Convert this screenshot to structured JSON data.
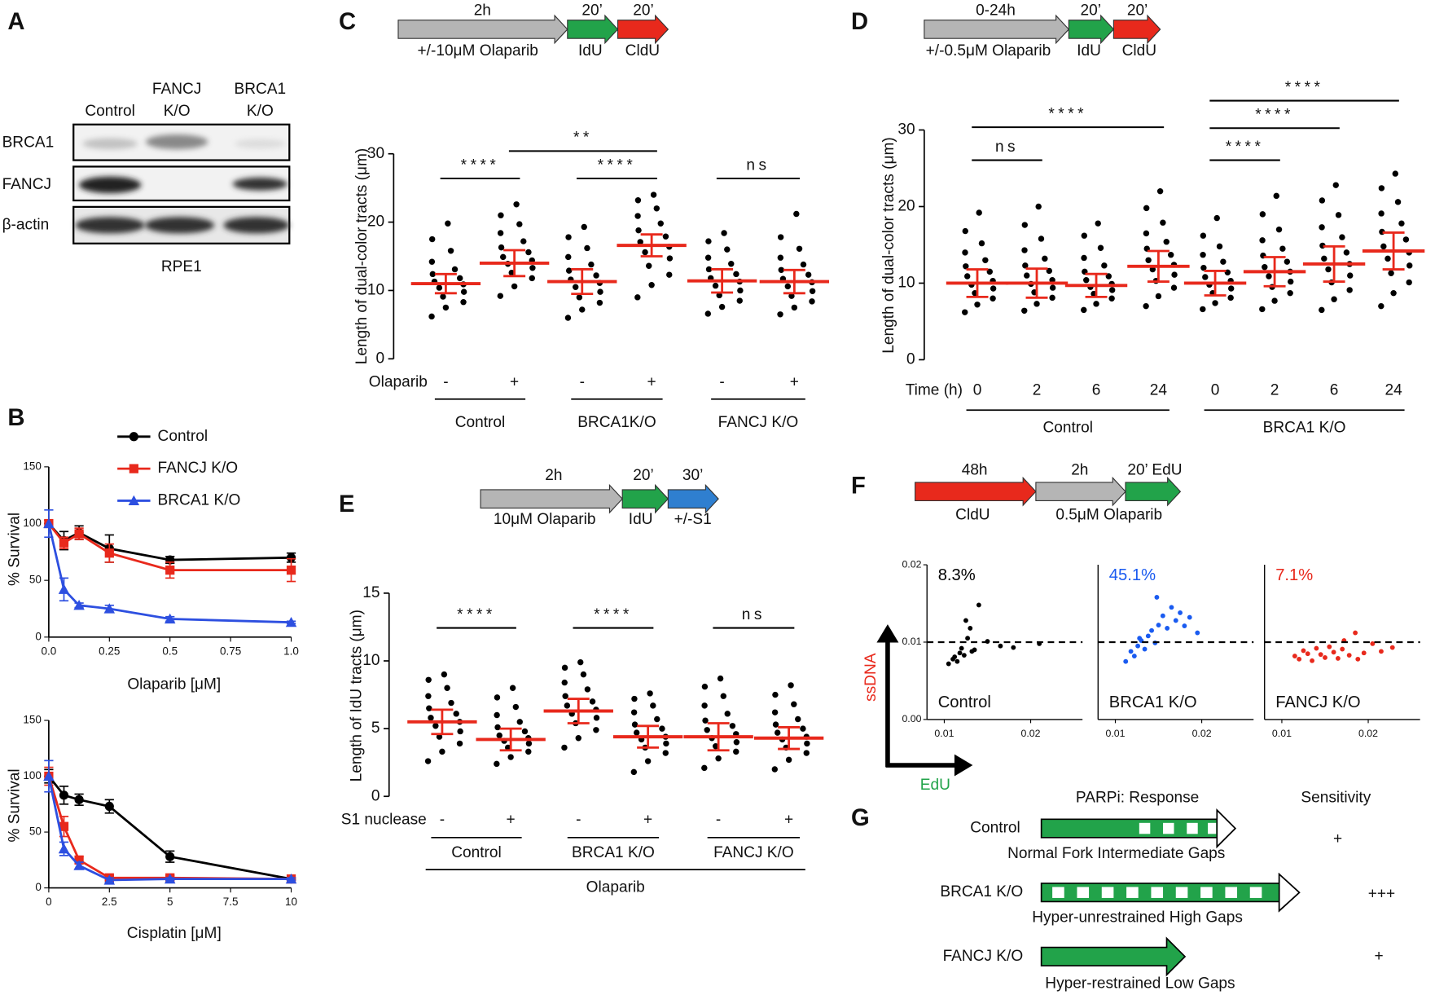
{
  "figure": {
    "panel_labels": [
      "A",
      "B",
      "C",
      "D",
      "E",
      "F",
      "G"
    ]
  },
  "panel_a": {
    "columns": [
      [
        "Control"
      ],
      [
        "FANCJ",
        "K/O"
      ],
      [
        "BRCA1",
        "K/O"
      ]
    ],
    "rows": [
      "BRCA1",
      "FANCJ",
      "β-actin"
    ],
    "cell_line": "RPE1"
  },
  "panel_c_scheme": {
    "durations": [
      "2h",
      "20’",
      "20’"
    ],
    "labels": [
      "+/-10μM Olaparib",
      "IdU",
      "CldU"
    ]
  },
  "panel_d_scheme": {
    "durations": [
      "0-24h",
      "20’",
      "20’"
    ],
    "labels": [
      "+/-0.5μM Olaparib",
      "IdU",
      "CldU"
    ]
  },
  "panel_e_scheme": {
    "durations": [
      "2h",
      "20’",
      "30’"
    ],
    "labels": [
      "10μM Olaparib",
      "IdU",
      "+/-S1"
    ]
  },
  "panel_f_scheme": {
    "durations": [
      "48h",
      "2h",
      "20’ EdU"
    ],
    "labels": [
      "CldU",
      "0.5μM Olaparib"
    ]
  },
  "panel_f_axes": {
    "y_label": "ssDNA",
    "x_label": "EdU"
  },
  "panel_g": {
    "headers": [
      "PARPi: Response",
      "Sensitivity"
    ],
    "rows": [
      {
        "name": "Control",
        "description": "Normal Fork Intermediate Gaps",
        "sensitivity": "+"
      },
      {
        "name": "BRCA1 K/O",
        "description": "Hyper-unrestrained High Gaps",
        "sensitivity": "+++"
      },
      {
        "name": "FANCJ K/O",
        "description": "Hyper-restrained Low Gaps",
        "sensitivity": "+"
      }
    ]
  },
  "chart_data": [
    {
      "type": "line",
      "y_label": "% Survival",
      "x_label": "Olaparib [μM]",
      "x": [
        0,
        0.0625,
        0.125,
        0.25,
        0.5,
        1
      ],
      "xlim": [
        0,
        1
      ],
      "xticks": [
        {
          "value": 0,
          "label": "0.0"
        },
        0.25,
        0.5,
        0.75,
        {
          "value": 1,
          "label": "1.0"
        }
      ],
      "ylim": [
        0,
        150
      ],
      "yticks": [
        0,
        50,
        100,
        150
      ],
      "legend": "top-right",
      "series": [
        {
          "name": "Control",
          "color": "#000000",
          "marker": "circle",
          "values": [
            100,
            85,
            92,
            78,
            68,
            70
          ],
          "errors": [
            3,
            8,
            6,
            12,
            3,
            4
          ]
        },
        {
          "name": "FANCJ K/O",
          "color": "#e8291c",
          "marker": "square",
          "values": [
            100,
            83,
            91,
            74,
            59,
            59
          ],
          "errors": [
            3,
            5,
            5,
            8,
            7,
            10
          ]
        },
        {
          "name": "BRCA1 K/O",
          "color": "#2d4fe0",
          "marker": "triangle",
          "values": [
            100,
            42,
            28,
            25,
            16,
            13
          ],
          "errors": [
            12,
            10,
            2,
            3,
            2,
            1
          ]
        }
      ]
    },
    {
      "type": "line",
      "y_label": "% Survival",
      "x_label": "Cisplatin [μM]",
      "x": [
        0,
        0.625,
        1.25,
        2.5,
        5,
        10
      ],
      "xlim": [
        0,
        10
      ],
      "xticks": [
        0,
        2.5,
        5,
        7.5,
        10
      ],
      "ylim": [
        0,
        150
      ],
      "yticks": [
        0,
        50,
        100,
        150
      ],
      "series": [
        {
          "color": "#000000",
          "marker": "circle",
          "values": [
            100,
            83,
            79,
            73,
            28,
            8
          ],
          "errors": [
            6,
            8,
            5,
            6,
            5,
            1
          ]
        },
        {
          "color": "#e8291c",
          "marker": "square",
          "values": [
            100,
            55,
            25,
            9,
            9,
            8
          ],
          "errors": [
            8,
            9,
            3,
            2,
            2,
            1
          ]
        },
        {
          "color": "#2d4fe0",
          "marker": "triangle",
          "values": [
            100,
            35,
            20,
            7,
            8,
            8
          ],
          "errors": [
            14,
            6,
            3,
            2,
            1,
            1
          ]
        }
      ]
    },
    {
      "type": "dotplot",
      "y_label": "Length of dual-color tracts (μm)",
      "ylim": [
        0,
        30
      ],
      "yticks": [
        0,
        10,
        20,
        30
      ],
      "row_label": "Olaparib",
      "conditions": [
        "-",
        "+",
        "-",
        "+",
        "-",
        "+"
      ],
      "groups": [
        "Control",
        "BRCA1K/O",
        "FANCJ K/O"
      ],
      "annotations": [
        "****",
        "**",
        "****",
        "ns"
      ],
      "dot_color": "#000000",
      "error_color": "#e8291c",
      "columns": [
        {
          "mean": 11,
          "sd": 1.4,
          "values": [
            6.2,
            7.5,
            8.3,
            9.1,
            9.8,
            10.4,
            10.9,
            11.3,
            11.8,
            12.4,
            13.1,
            14.2,
            15.8,
            17.5,
            19.8
          ]
        },
        {
          "mean": 14,
          "sd": 1.9,
          "values": [
            9.2,
            10.6,
            11.8,
            12.6,
            13.3,
            13.9,
            14.4,
            14.9,
            15.6,
            16.3,
            17.2,
            18.4,
            19.7,
            21.0,
            22.6
          ]
        },
        {
          "mean": 11.3,
          "sd": 1.8,
          "values": [
            6.0,
            7.2,
            8.2,
            9.0,
            9.8,
            10.5,
            11.1,
            11.6,
            12.2,
            12.9,
            13.8,
            14.9,
            16.2,
            17.8,
            19.3
          ]
        },
        {
          "mean": 16.6,
          "sd": 1.6,
          "values": [
            9.0,
            10.8,
            12.3,
            13.6,
            14.7,
            15.6,
            16.4,
            17.1,
            17.9,
            18.8,
            19.8,
            20.9,
            22.0,
            23.2,
            24.0
          ]
        },
        {
          "mean": 11.4,
          "sd": 1.7,
          "values": [
            6.6,
            7.6,
            8.5,
            9.3,
            10.0,
            10.7,
            11.3,
            11.8,
            12.4,
            13.1,
            13.9,
            14.8,
            16.0,
            17.2,
            18.4
          ]
        },
        {
          "mean": 11.3,
          "sd": 1.7,
          "values": [
            6.5,
            7.5,
            8.4,
            9.2,
            9.9,
            10.6,
            11.2,
            11.7,
            12.3,
            13.0,
            13.8,
            14.8,
            16.1,
            17.8,
            21.2
          ]
        }
      ]
    },
    {
      "type": "dotplot",
      "y_label": "Length of dual-color tracts (μm)",
      "ylim": [
        0,
        30
      ],
      "yticks": [
        0,
        10,
        20,
        30
      ],
      "row_label": "Time (h)",
      "conditions": [
        "0",
        "2",
        "6",
        "24",
        "0",
        "2",
        "6",
        "24"
      ],
      "groups": [
        "Control",
        "BRCA1 K/O"
      ],
      "annotations": [
        "****",
        "ns",
        "****",
        "****",
        "****"
      ],
      "dot_color": "#000000",
      "error_color": "#e8291c",
      "columns": [
        {
          "mean": 10,
          "sd": 1.8,
          "values": [
            6.2,
            7.2,
            8.0,
            8.7,
            9.3,
            9.8,
            10.3,
            10.9,
            11.5,
            12.2,
            13.0,
            14.0,
            15.2,
            16.8,
            19.2
          ]
        },
        {
          "mean": 10,
          "sd": 1.9,
          "values": [
            6.4,
            7.3,
            8.1,
            8.8,
            9.4,
            9.9,
            10.4,
            11.0,
            11.6,
            12.3,
            13.2,
            14.3,
            15.8,
            17.6,
            20.0
          ]
        },
        {
          "mean": 9.7,
          "sd": 1.5,
          "values": [
            6.5,
            7.3,
            8.0,
            8.6,
            9.1,
            9.5,
            9.9,
            10.4,
            10.9,
            11.5,
            12.3,
            13.3,
            14.6,
            16.2,
            17.8
          ]
        },
        {
          "mean": 12.2,
          "sd": 2.0,
          "values": [
            7.0,
            8.3,
            9.4,
            10.3,
            11.1,
            11.8,
            12.4,
            13.0,
            13.7,
            14.5,
            15.4,
            16.5,
            17.9,
            19.8,
            22.0
          ]
        },
        {
          "mean": 10,
          "sd": 1.6,
          "values": [
            6.6,
            7.4,
            8.1,
            8.7,
            9.3,
            9.8,
            10.3,
            10.8,
            11.4,
            12.0,
            12.8,
            13.7,
            14.8,
            16.2,
            18.5
          ]
        },
        {
          "mean": 11.5,
          "sd": 1.9,
          "values": [
            6.6,
            7.7,
            8.7,
            9.5,
            10.2,
            10.9,
            11.5,
            12.1,
            12.8,
            13.6,
            14.5,
            15.6,
            17.0,
            19.0,
            21.4
          ]
        },
        {
          "mean": 12.5,
          "sd": 2.3,
          "values": [
            6.5,
            7.9,
            9.1,
            10.1,
            11.0,
            11.8,
            12.5,
            13.2,
            14.0,
            14.9,
            16.0,
            17.3,
            18.9,
            20.8,
            22.8
          ]
        },
        {
          "mean": 14.2,
          "sd": 2.4,
          "values": [
            7.0,
            8.7,
            10.1,
            11.3,
            12.3,
            13.2,
            14.0,
            14.8,
            15.7,
            16.7,
            17.8,
            19.1,
            20.6,
            22.4,
            24.3
          ]
        }
      ]
    },
    {
      "type": "dotplot",
      "y_label": "Length of IdU tracts (μm)",
      "ylim": [
        0,
        15
      ],
      "yticks": [
        0,
        5,
        10,
        15
      ],
      "row_label": "S1 nuclease",
      "conditions": [
        "-",
        "+",
        "-",
        "+",
        "-",
        "+"
      ],
      "groups": [
        "Control",
        "BRCA1 K/O",
        "FANCJ K/O"
      ],
      "footer": "Olaparib",
      "annotations": [
        "****",
        "****",
        "ns"
      ],
      "dot_color": "#000000",
      "error_color": "#e8291c",
      "columns": [
        {
          "mean": 5.5,
          "sd": 0.9,
          "values": [
            2.6,
            3.3,
            3.9,
            4.4,
            4.8,
            5.2,
            5.5,
            5.8,
            6.1,
            6.5,
            6.9,
            7.4,
            8.0,
            8.6,
            9.0
          ]
        },
        {
          "mean": 4.2,
          "sd": 0.8,
          "values": [
            2.4,
            2.9,
            3.3,
            3.6,
            3.9,
            4.1,
            4.3,
            4.5,
            4.8,
            5.1,
            5.5,
            6.0,
            6.6,
            7.3,
            8.0
          ]
        },
        {
          "mean": 6.3,
          "sd": 0.9,
          "values": [
            3.6,
            4.3,
            4.9,
            5.4,
            5.8,
            6.1,
            6.4,
            6.7,
            7.0,
            7.4,
            7.9,
            8.4,
            9.0,
            9.5,
            9.9
          ]
        },
        {
          "mean": 4.4,
          "sd": 0.8,
          "values": [
            1.8,
            2.6,
            3.2,
            3.6,
            3.9,
            4.2,
            4.4,
            4.7,
            5.0,
            5.3,
            5.7,
            6.2,
            6.7,
            7.2,
            7.6
          ]
        },
        {
          "mean": 4.4,
          "sd": 1.0,
          "values": [
            2.1,
            2.8,
            3.3,
            3.7,
            4.0,
            4.3,
            4.6,
            4.9,
            5.2,
            5.6,
            6.1,
            6.7,
            7.4,
            8.1,
            8.7
          ]
        },
        {
          "mean": 4.3,
          "sd": 0.8,
          "values": [
            2.0,
            2.7,
            3.2,
            3.6,
            3.9,
            4.2,
            4.4,
            4.7,
            5.0,
            5.3,
            5.7,
            6.2,
            6.8,
            7.5,
            8.2
          ]
        }
      ]
    },
    {
      "type": "scatter",
      "label": "Control",
      "annotation": "8.3%",
      "color": "#000000",
      "xlim": [
        0.008,
        0.026
      ],
      "xticks": [
        0.01,
        0.02
      ],
      "ylim": [
        0,
        0.02
      ],
      "yticks": [
        {
          "value": 0,
          "label": "0.00"
        },
        0.01,
        0.02
      ],
      "reference_line": 0.01,
      "x": [
        0.0105,
        0.011,
        0.0112,
        0.0115,
        0.0118,
        0.012,
        0.0123,
        0.0127,
        0.013,
        0.0135,
        0.014,
        0.015,
        0.0165,
        0.018,
        0.021,
        0.0125,
        0.0132
      ],
      "values": [
        0.0072,
        0.0078,
        0.0081,
        0.0075,
        0.0086,
        0.0092,
        0.0083,
        0.0105,
        0.0118,
        0.009,
        0.0148,
        0.0101,
        0.0095,
        0.0093,
        0.0098,
        0.0128,
        0.0088
      ]
    },
    {
      "type": "scatter",
      "label": "BRCA1 K/O",
      "annotation": "45.1%",
      "color": "#1a5bf0",
      "xlim": [
        0.008,
        0.026
      ],
      "xticks": [
        0.01,
        0.02
      ],
      "ylim": [
        0,
        0.02
      ],
      "reference_line": 0.01,
      "x": [
        0.0112,
        0.0118,
        0.0122,
        0.0126,
        0.013,
        0.0134,
        0.0138,
        0.0142,
        0.0146,
        0.015,
        0.0155,
        0.016,
        0.0165,
        0.017,
        0.0175,
        0.018,
        0.0186,
        0.0195,
        0.0128,
        0.0148
      ],
      "values": [
        0.0075,
        0.0088,
        0.0082,
        0.0095,
        0.0102,
        0.0091,
        0.0108,
        0.0115,
        0.0099,
        0.0122,
        0.0134,
        0.0118,
        0.0145,
        0.0128,
        0.0138,
        0.0121,
        0.0132,
        0.0112,
        0.0105,
        0.0158
      ]
    },
    {
      "type": "scatter",
      "label": "FANCJ K/O",
      "annotation": "7.1%",
      "color": "#e8291c",
      "xlim": [
        0.008,
        0.026
      ],
      "xticks": [
        0.01,
        0.02
      ],
      "ylim": [
        0,
        0.02
      ],
      "reference_line": 0.01,
      "x": [
        0.0115,
        0.012,
        0.0125,
        0.013,
        0.0135,
        0.014,
        0.0145,
        0.015,
        0.0155,
        0.016,
        0.0165,
        0.017,
        0.0178,
        0.0185,
        0.0195,
        0.0205,
        0.0215,
        0.0228,
        0.0172,
        0.0188
      ],
      "values": [
        0.0082,
        0.0078,
        0.0089,
        0.0085,
        0.0076,
        0.0092,
        0.0084,
        0.008,
        0.0094,
        0.0087,
        0.0079,
        0.0091,
        0.0083,
        0.0112,
        0.0086,
        0.0098,
        0.0088,
        0.0093,
        0.0102,
        0.0078
      ]
    }
  ]
}
